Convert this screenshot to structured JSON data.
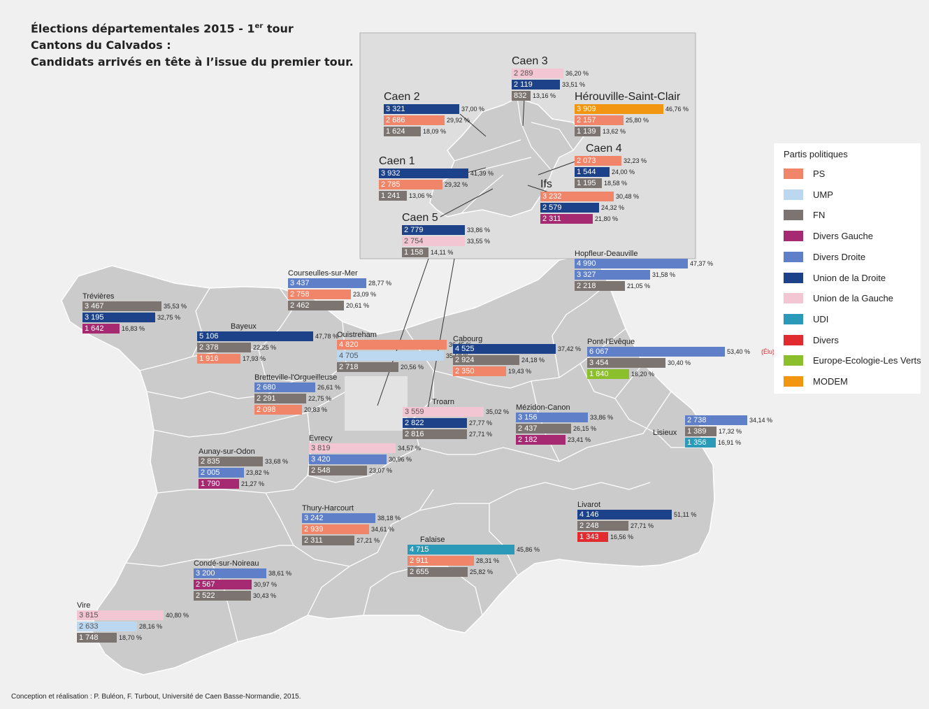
{
  "title": {
    "line1_prefix": "Élections départementales 2015 - 1",
    "line1_sup": "er",
    "line1_suffix": " tour",
    "line2": "Cantons du Calvados :",
    "line3": "Candidats arrivés en tête à l’issue du premier tour."
  },
  "parties": {
    "PS": {
      "label": "PS",
      "color": "#f0856a"
    },
    "UMP": {
      "label": "UMP",
      "color": "#bcd7f0"
    },
    "FN": {
      "label": "FN",
      "color": "#7b7470"
    },
    "DVG": {
      "label": "Divers Gauche",
      "color": "#a52a72"
    },
    "DVD": {
      "label": "Divers Droite",
      "color": "#5f7fc8"
    },
    "UD": {
      "label": "Union de la Droite",
      "color": "#1d428a"
    },
    "UG": {
      "label": "Union de la Gauche",
      "color": "#f2c6d2"
    },
    "UDI": {
      "label": "UDI",
      "color": "#2a9ab8"
    },
    "DIV": {
      "label": "Divers",
      "color": "#e22b2f"
    },
    "EELV": {
      "label": "Europe-Ecologie-Les Verts",
      "color": "#8cbf2c"
    },
    "MODEM": {
      "label": "MODEM",
      "color": "#f29511"
    }
  },
  "legend": {
    "title": "Partis politiques",
    "order": [
      "PS",
      "UMP",
      "FN",
      "DVG",
      "DVD",
      "UD",
      "UG",
      "UDI",
      "DIV",
      "EELV",
      "MODEM"
    ]
  },
  "cantons": [
    {
      "name": "Trévières",
      "rows": [
        {
          "p": "FN",
          "v": "3 467",
          "pct": "35,53 %"
        },
        {
          "p": "UD",
          "v": "3 195",
          "pct": "32,75 %"
        },
        {
          "p": "DVG",
          "v": "1 642",
          "pct": "16,83 %"
        }
      ]
    },
    {
      "name": "Courseulles-sur-Mer",
      "rows": [
        {
          "p": "DVD",
          "v": "3 437",
          "pct": "28,77 %"
        },
        {
          "p": "PS",
          "v": "2 758",
          "pct": "23,09 %"
        },
        {
          "p": "FN",
          "v": "2 462",
          "pct": "20,61 %"
        }
      ]
    },
    {
      "name": "Bayeux",
      "rows": [
        {
          "p": "UD",
          "v": "5 106",
          "pct": "47,78 %"
        },
        {
          "p": "FN",
          "v": "2 378",
          "pct": "22,25 %"
        },
        {
          "p": "PS",
          "v": "1 916",
          "pct": "17,93 %"
        }
      ]
    },
    {
      "name": "Ouistreham",
      "rows": [
        {
          "p": "PS",
          "v": "4 820",
          "pct": "36,45 %"
        },
        {
          "p": "UMP",
          "v": "4 705",
          "pct": "35,58 %"
        },
        {
          "p": "FN",
          "v": "2 718",
          "pct": "20,56 %"
        }
      ]
    },
    {
      "name": "Cabourg",
      "rows": [
        {
          "p": "UD",
          "v": "4 525",
          "pct": "37,42 %"
        },
        {
          "p": "FN",
          "v": "2 924",
          "pct": "24,18 %"
        },
        {
          "p": "PS",
          "v": "2 350",
          "pct": "19,43 %"
        }
      ]
    },
    {
      "name": "Hopfleur-Deauville",
      "rows": [
        {
          "p": "DVD",
          "v": "4 990",
          "pct": "47,37 %"
        },
        {
          "p": "DVD",
          "v": "3 327",
          "pct": "31,58 %"
        },
        {
          "p": "FN",
          "v": "2 218",
          "pct": "21,05 %"
        }
      ]
    },
    {
      "name": "Pont-l'Evêque",
      "elu": "(Élu)",
      "rows": [
        {
          "p": "DVD",
          "v": "6 067",
          "pct": "53,40 %"
        },
        {
          "p": "FN",
          "v": "3 454",
          "pct": "30,40 %"
        },
        {
          "p": "EELV",
          "v": "1 840",
          "pct": "16,20 %"
        }
      ]
    },
    {
      "name": "Bretteville-l'Orgueilleuse",
      "rows": [
        {
          "p": "DVD",
          "v": "2 680",
          "pct": "26,61 %"
        },
        {
          "p": "FN",
          "v": "2 291",
          "pct": "22,75 %"
        },
        {
          "p": "PS",
          "v": "2 098",
          "pct": "20,83 %"
        }
      ]
    },
    {
      "name": "Troarn",
      "rows": [
        {
          "p": "UG",
          "v": "3 559",
          "pct": "35,02 %"
        },
        {
          "p": "UD",
          "v": "2 822",
          "pct": "27,77 %"
        },
        {
          "p": "FN",
          "v": "2 816",
          "pct": "27,71 %"
        }
      ]
    },
    {
      "name": "Mézidon-Canon",
      "rows": [
        {
          "p": "DVD",
          "v": "3 156",
          "pct": "33,86 %"
        },
        {
          "p": "FN",
          "v": "2 437",
          "pct": "26,15 %"
        },
        {
          "p": "DVG",
          "v": "2 182",
          "pct": "23,41 %"
        }
      ]
    },
    {
      "name": "Lisieux",
      "rows": [
        {
          "p": "DVD",
          "v": "2 738",
          "pct": "34,14 %"
        },
        {
          "p": "FN",
          "v": "1 389",
          "pct": "17,32 %"
        },
        {
          "p": "UDI",
          "v": "1 356",
          "pct": "16,91 %"
        }
      ]
    },
    {
      "name": "Evrecy",
      "rows": [
        {
          "p": "UG",
          "v": "3 819",
          "pct": "34,57 %"
        },
        {
          "p": "DVD",
          "v": "3 420",
          "pct": "30,96 %"
        },
        {
          "p": "FN",
          "v": "2 548",
          "pct": "23,07 %"
        }
      ]
    },
    {
      "name": "Aunay-sur-Odon",
      "rows": [
        {
          "p": "FN",
          "v": "2 835",
          "pct": "33,68 %"
        },
        {
          "p": "DVD",
          "v": "2 005",
          "pct": "23,82 %"
        },
        {
          "p": "DVG",
          "v": "1 790",
          "pct": "21,27 %"
        }
      ]
    },
    {
      "name": "Thury-Harcourt",
      "rows": [
        {
          "p": "DVD",
          "v": "3 242",
          "pct": "38,18 %"
        },
        {
          "p": "PS",
          "v": "2 939",
          "pct": "34,61 %"
        },
        {
          "p": "FN",
          "v": "2 311",
          "pct": "27,21 %"
        }
      ]
    },
    {
      "name": "Livarot",
      "rows": [
        {
          "p": "UD",
          "v": "4 146",
          "pct": "51,11 %"
        },
        {
          "p": "FN",
          "v": "2 248",
          "pct": "27,71 %"
        },
        {
          "p": "DIV",
          "v": "1 343",
          "pct": "16,56 %"
        }
      ]
    },
    {
      "name": "Falaise",
      "rows": [
        {
          "p": "UDI",
          "v": "4 715",
          "pct": "45,86 %"
        },
        {
          "p": "PS",
          "v": "2 911",
          "pct": "28,31 %"
        },
        {
          "p": "FN",
          "v": "2 655",
          "pct": "25,82 %"
        }
      ]
    },
    {
      "name": "Condé-sur-Noireau",
      "rows": [
        {
          "p": "DVD",
          "v": "3 200",
          "pct": "38,61 %"
        },
        {
          "p": "DVG",
          "v": "2 567",
          "pct": "30,97 %"
        },
        {
          "p": "FN",
          "v": "2 522",
          "pct": "30,43 %"
        }
      ]
    },
    {
      "name": "Vire",
      "rows": [
        {
          "p": "UG",
          "v": "3 815",
          "pct": "40,80 %"
        },
        {
          "p": "UMP",
          "v": "2 633",
          "pct": "28,16 %"
        },
        {
          "p": "FN",
          "v": "1 748",
          "pct": "18,70 %"
        }
      ]
    },
    {
      "name": "Caen 3",
      "big": true,
      "rows": [
        {
          "p": "UG",
          "v": "2 289",
          "pct": "36,20 %"
        },
        {
          "p": "UD",
          "v": "2 119",
          "pct": "33,51 %"
        },
        {
          "p": "FN",
          "v": "832",
          "pct": "13,16 %"
        }
      ]
    },
    {
      "name": "Hérouville-Saint-Clair",
      "big": true,
      "rows": [
        {
          "p": "MODEM",
          "v": "3 909",
          "pct": "46,76 %"
        },
        {
          "p": "PS",
          "v": "2 157",
          "pct": "25,80 %"
        },
        {
          "p": "FN",
          "v": "1 139",
          "pct": "13,62 %"
        }
      ]
    },
    {
      "name": "Caen 2",
      "big": true,
      "rows": [
        {
          "p": "UD",
          "v": "3 321",
          "pct": "37,00 %"
        },
        {
          "p": "PS",
          "v": "2 686",
          "pct": "29,92 %"
        },
        {
          "p": "FN",
          "v": "1 624",
          "pct": "18,09 %"
        }
      ]
    },
    {
      "name": "Caen 4",
      "big": true,
      "rows": [
        {
          "p": "PS",
          "v": "2 073",
          "pct": "32,23 %"
        },
        {
          "p": "UD",
          "v": "1 544",
          "pct": "24,00 %"
        },
        {
          "p": "FN",
          "v": "1 195",
          "pct": "18,58 %"
        }
      ]
    },
    {
      "name": "Caen 1",
      "big": true,
      "rows": [
        {
          "p": "UD",
          "v": "3 932",
          "pct": "41,39 %"
        },
        {
          "p": "PS",
          "v": "2 785",
          "pct": "29,32 %"
        },
        {
          "p": "FN",
          "v": "1 241",
          "pct": "13,06 %"
        }
      ]
    },
    {
      "name": "Ifs",
      "big": true,
      "rows": [
        {
          "p": "PS",
          "v": "3 232",
          "pct": "30,48 %"
        },
        {
          "p": "UD",
          "v": "2 579",
          "pct": "24,32 %"
        },
        {
          "p": "DVG",
          "v": "2 311",
          "pct": "21,80 %"
        }
      ]
    },
    {
      "name": "Caen 5",
      "big": true,
      "rows": [
        {
          "p": "UD",
          "v": "2 779",
          "pct": "33,86 %"
        },
        {
          "p": "UG",
          "v": "2 754",
          "pct": "33,55 %"
        },
        {
          "p": "FN",
          "v": "1 158",
          "pct": "14,11 %"
        }
      ]
    }
  ],
  "credits": "Conception et réalisation : P. Buléon, F. Turbout, Université de Caen Basse-Normandie, 2015."
}
